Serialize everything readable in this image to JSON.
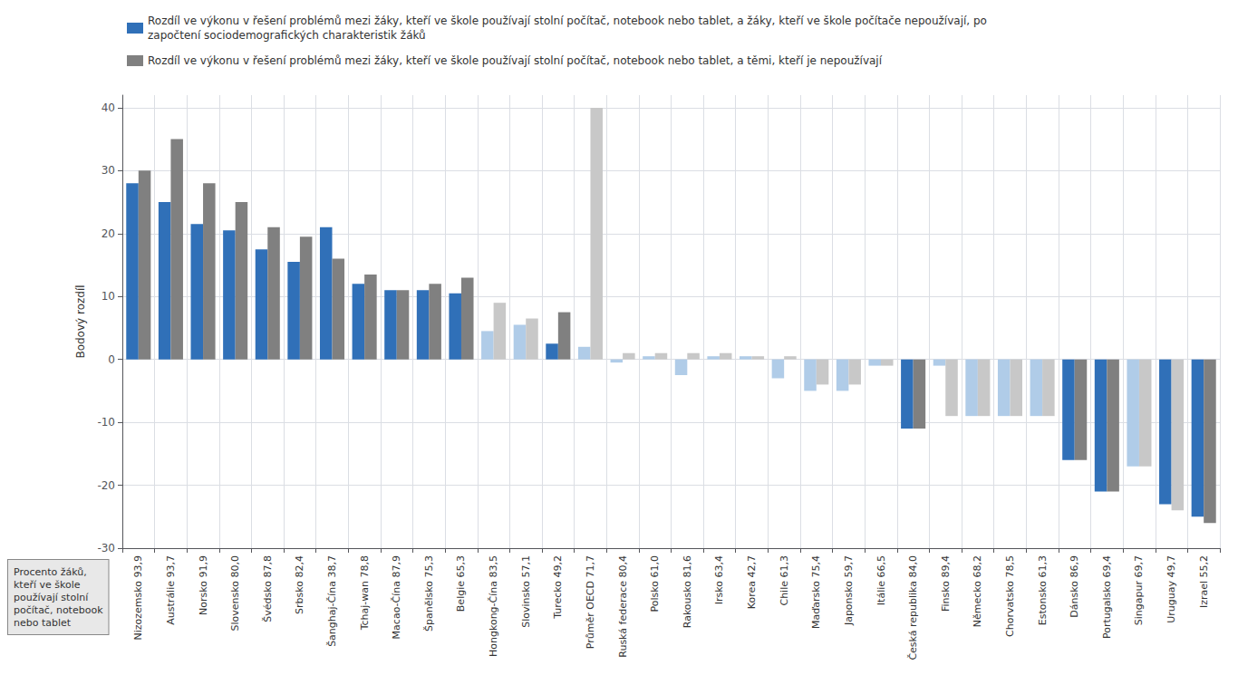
{
  "chart_data": {
    "type": "bar",
    "categories": [
      "Nizozemsko 93,9",
      "Austrálie 93,7",
      "Norsko 91,9",
      "Slovensko 80,0",
      "Švédsko 87,8",
      "Srbsko 82,4",
      "Šanghaj-Čína 38,7",
      "Tchaj-wan 78,8",
      "Macao-Čína 87,9",
      "Španělsko 75,3",
      "Belgie 65,3",
      "Hongkong-Čína 83,5",
      "Slovinsko 57,1",
      "Turecko 49,2",
      "Průměr OECD 71,7",
      "Ruská federace 80,4",
      "Polsko 61,0",
      "Rakousko 81,6",
      "Irsko 63,4",
      "Korea 42,7",
      "Chile 61,3",
      "Maďarsko 75,4",
      "Japonsko 59,7",
      "Itálie 66,5",
      "Česká republika 84,0",
      "Finsko 89,4",
      "Německo 68,2",
      "Chorvatsko 78,5",
      "Estonsko 61,3",
      "Dánsko 86,9",
      "Portugalsko 69,4",
      "Singapur 69,7",
      "Uruguay 49,7",
      "Izrael 55,2"
    ],
    "series": [
      {
        "name": "Rozdíl ve výkonu v řešení problémů mezi žáky, kteří ve škole používají stolní počítač, notebook nebo tablet, a žáky, kteří ve škole počítače nepoužívají, po\nzapočtení sociodemografických charakteristik žáků",
        "color": "#3070b8",
        "colors": [
          "#3070b8",
          "#3070b8",
          "#3070b8",
          "#3070b8",
          "#3070b8",
          "#3070b8",
          "#3070b8",
          "#3070b8",
          "#3070b8",
          "#3070b8",
          "#3070b8",
          "#b0cce8",
          "#b0cce8",
          "#3070b8",
          "#b0cce8",
          "#b0cce8",
          "#b0cce8",
          "#b0cce8",
          "#b0cce8",
          "#b0cce8",
          "#b0cce8",
          "#b0cce8",
          "#b0cce8",
          "#b0cce8",
          "#3070b8",
          "#b0cce8",
          "#b0cce8",
          "#b0cce8",
          "#b0cce8",
          "#3070b8",
          "#3070b8",
          "#b0cce8",
          "#3070b8",
          "#3070b8"
        ],
        "values": [
          28,
          25,
          21.5,
          20.5,
          17.5,
          15.5,
          21,
          12,
          11,
          11,
          10.5,
          4.5,
          5.5,
          2.5,
          2,
          -0.5,
          0.5,
          -2.5,
          0.5,
          0.5,
          -3,
          -5,
          -5,
          -1,
          -11,
          -1,
          -9,
          -9,
          -9,
          -16,
          -21,
          -17,
          -23,
          -25
        ]
      },
      {
        "name": "Rozdíl ve výkonu v řešení problémů mezi žáky, kteří ve škole používají stolní počítač, notebook nebo tablet, a těmi, kteří je nepoužívají",
        "color": "#808080",
        "colors": [
          "#808080",
          "#808080",
          "#808080",
          "#808080",
          "#808080",
          "#808080",
          "#808080",
          "#808080",
          "#808080",
          "#808080",
          "#808080",
          "#c8c8c8",
          "#c8c8c8",
          "#808080",
          "#c8c8c8",
          "#c8c8c8",
          "#c8c8c8",
          "#c8c8c8",
          "#c8c8c8",
          "#c8c8c8",
          "#c8c8c8",
          "#c8c8c8",
          "#c8c8c8",
          "#c8c8c8",
          "#808080",
          "#c8c8c8",
          "#c8c8c8",
          "#c8c8c8",
          "#c8c8c8",
          "#808080",
          "#808080",
          "#c8c8c8",
          "#c8c8c8",
          "#808080"
        ],
        "values": [
          30,
          35,
          28,
          25,
          21,
          19.5,
          16,
          13.5,
          11,
          12,
          13,
          9,
          6.5,
          7.5,
          40,
          1,
          1,
          1,
          1,
          0.5,
          0.5,
          -4,
          -4,
          -1,
          -11,
          -9,
          -9,
          -9,
          -9,
          -16,
          -21,
          -17,
          -24,
          -26
        ]
      }
    ],
    "ylabel": "Bodový rozdíl",
    "xlabel": "Procento žáků,\nkteří ve škole\npoužívají stolní\npočítač, notebook\nnebo tablet",
    "ylim": [
      -30,
      42
    ],
    "yticks": [
      -30,
      -20,
      -10,
      0,
      10,
      20,
      30,
      40
    ],
    "grid": true,
    "legend": "top-left"
  }
}
